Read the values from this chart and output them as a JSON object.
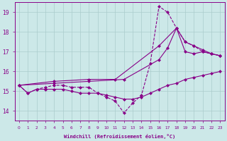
{
  "xlabel": "Windchill (Refroidissement éolien,°C)",
  "background_color": "#cce8e8",
  "line_color": "#880088",
  "grid_color": "#aacccc",
  "xlim": [
    -0.5,
    23.5
  ],
  "ylim": [
    13.5,
    19.5
  ],
  "yticks": [
    14,
    15,
    16,
    17,
    18,
    19
  ],
  "xticks": [
    0,
    1,
    2,
    3,
    4,
    5,
    6,
    7,
    8,
    9,
    10,
    11,
    12,
    13,
    14,
    15,
    16,
    17,
    18,
    19,
    20,
    21,
    22,
    23
  ],
  "series": [
    {
      "x": [
        0,
        4,
        8,
        12,
        16,
        17,
        18,
        19,
        20,
        21,
        22,
        23
      ],
      "y": [
        15.3,
        15.4,
        15.5,
        15.6,
        16.6,
        17.2,
        18.2,
        17.0,
        16.9,
        17.0,
        16.9,
        16.8
      ],
      "linestyle": "-"
    },
    {
      "x": [
        0,
        4,
        8,
        11,
        16,
        18,
        19,
        20,
        21,
        22,
        23
      ],
      "y": [
        15.3,
        15.5,
        15.6,
        15.6,
        17.3,
        18.2,
        17.5,
        17.3,
        17.1,
        16.9,
        16.8
      ],
      "linestyle": "-"
    },
    {
      "x": [
        0,
        1,
        2,
        3,
        4,
        5,
        6,
        7,
        8,
        9,
        10,
        11,
        12,
        13,
        14,
        15,
        16,
        17,
        18,
        19,
        20,
        21,
        22,
        23
      ],
      "y": [
        15.3,
        14.9,
        15.1,
        15.2,
        15.3,
        15.3,
        15.2,
        15.2,
        15.2,
        14.9,
        14.7,
        14.5,
        13.9,
        14.4,
        14.8,
        16.4,
        19.3,
        19.0,
        18.2,
        17.5,
        17.3,
        17.0,
        16.9,
        16.8
      ],
      "linestyle": "--"
    },
    {
      "x": [
        0,
        1,
        2,
        3,
        4,
        5,
        6,
        7,
        8,
        9,
        10,
        11,
        12,
        13,
        14,
        15,
        16,
        17,
        18,
        19,
        20,
        21,
        22,
        23
      ],
      "y": [
        15.3,
        14.9,
        15.1,
        15.1,
        15.1,
        15.1,
        15.0,
        14.9,
        14.9,
        14.9,
        14.8,
        14.7,
        14.6,
        14.6,
        14.7,
        14.9,
        15.1,
        15.3,
        15.4,
        15.6,
        15.7,
        15.8,
        15.9,
        16.0
      ],
      "linestyle": "-"
    }
  ]
}
